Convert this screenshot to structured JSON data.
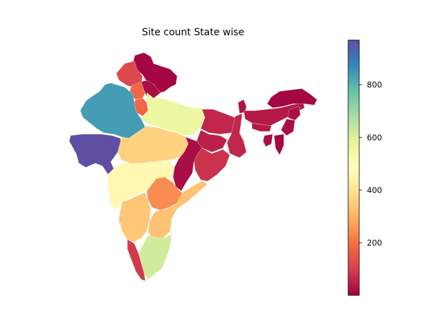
{
  "chart_data": {
    "type": "choropleth",
    "title": "Site count State wise",
    "colormap": "Spectral",
    "colorbar": {
      "min": 0,
      "max": 970,
      "ticks": [
        200,
        400,
        600,
        800
      ]
    },
    "regions": [
      {
        "name": "Jammu & Kashmir",
        "value": 10
      },
      {
        "name": "Himachal Pradesh",
        "value": 120
      },
      {
        "name": "Punjab",
        "value": 180
      },
      {
        "name": "Uttarakhand",
        "value": 20
      },
      {
        "name": "Haryana",
        "value": 180
      },
      {
        "name": "Rajasthan",
        "value": 840
      },
      {
        "name": "Uttar Pradesh",
        "value": 560
      },
      {
        "name": "Gujarat",
        "value": 970
      },
      {
        "name": "Madhya Pradesh",
        "value": 360
      },
      {
        "name": "Bihar",
        "value": 60
      },
      {
        "name": "Jharkhand",
        "value": 50
      },
      {
        "name": "West Bengal",
        "value": 60
      },
      {
        "name": "Odisha",
        "value": 80
      },
      {
        "name": "Chhattisgarh",
        "value": 20
      },
      {
        "name": "Maharashtra",
        "value": 460
      },
      {
        "name": "Telangana",
        "value": 240
      },
      {
        "name": "Andhra Pradesh",
        "value": 330
      },
      {
        "name": "Karnataka",
        "value": 340
      },
      {
        "name": "Goa",
        "value": 330
      },
      {
        "name": "Tamil Nadu",
        "value": 620
      },
      {
        "name": "Kerala",
        "value": 90
      },
      {
        "name": "Sikkim",
        "value": 30
      },
      {
        "name": "Assam",
        "value": 40
      },
      {
        "name": "Arunachal Pradesh",
        "value": 10
      },
      {
        "name": "Meghalaya",
        "value": 40
      },
      {
        "name": "Nagaland",
        "value": 20
      },
      {
        "name": "Manipur",
        "value": 20
      },
      {
        "name": "Mizoram",
        "value": 10
      },
      {
        "name": "Tripura",
        "value": 20
      }
    ]
  }
}
